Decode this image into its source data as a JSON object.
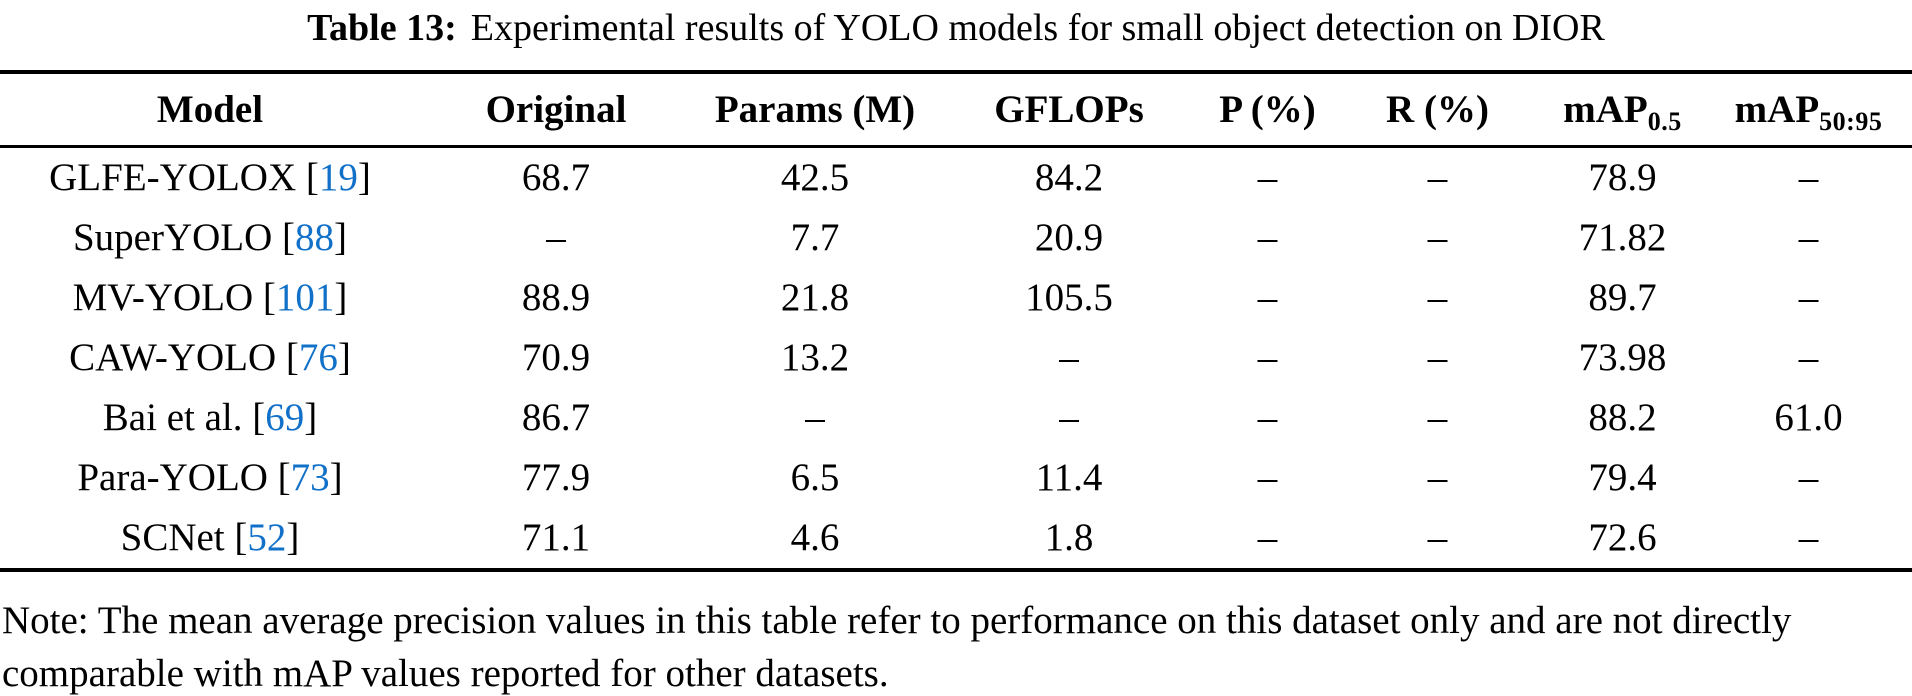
{
  "title": {
    "label": "Table 13:",
    "text": "Experimental results of YOLO models for small object detection on DIOR"
  },
  "table": {
    "columns": [
      {
        "label": "Model",
        "sub": ""
      },
      {
        "label": "Original",
        "sub": ""
      },
      {
        "label": "Params (M)",
        "sub": ""
      },
      {
        "label": "GFLOPs",
        "sub": ""
      },
      {
        "label": "P (%)",
        "sub": ""
      },
      {
        "label": "R (%)",
        "sub": ""
      },
      {
        "label": "mAP",
        "sub": "0.5"
      },
      {
        "label": "mAP",
        "sub": "50:95"
      }
    ],
    "rows": [
      {
        "model_pre": "GLFE-YOLOX [",
        "ref": "19",
        "model_post": "]",
        "values": [
          "68.7",
          "42.5",
          "84.2",
          "–",
          "–",
          "78.9",
          "–"
        ]
      },
      {
        "model_pre": "SuperYOLO [",
        "ref": "88",
        "model_post": "]",
        "values": [
          "–",
          "7.7",
          "20.9",
          "–",
          "–",
          "71.82",
          "–"
        ]
      },
      {
        "model_pre": "MV-YOLO [",
        "ref": "101",
        "model_post": "]",
        "values": [
          "88.9",
          "21.8",
          "105.5",
          "–",
          "–",
          "89.7",
          "–"
        ]
      },
      {
        "model_pre": "CAW-YOLO [",
        "ref": "76",
        "model_post": "]",
        "values": [
          "70.9",
          "13.2",
          "–",
          "–",
          "–",
          "73.98",
          "–"
        ]
      },
      {
        "model_pre": "Bai et al. [",
        "ref": "69",
        "model_post": "]",
        "values": [
          "86.7",
          "–",
          "–",
          "–",
          "–",
          "88.2",
          "61.0"
        ]
      },
      {
        "model_pre": "Para-YOLO [",
        "ref": "73",
        "model_post": "]",
        "values": [
          "77.9",
          "6.5",
          "11.4",
          "–",
          "–",
          "79.4",
          "–"
        ]
      },
      {
        "model_pre": "SCNet [",
        "ref": "52",
        "model_post": "]",
        "values": [
          "71.1",
          "4.6",
          "1.8",
          "–",
          "–",
          "72.6",
          "–"
        ]
      }
    ]
  },
  "note": {
    "text": "Note: The mean average precision values in this table refer to performance on this dataset only and are not directly comparable with mAP values reported for other datasets."
  },
  "colors": {
    "citation_blue": "#1170c8",
    "text": "#000000",
    "background": "#ffffff"
  }
}
